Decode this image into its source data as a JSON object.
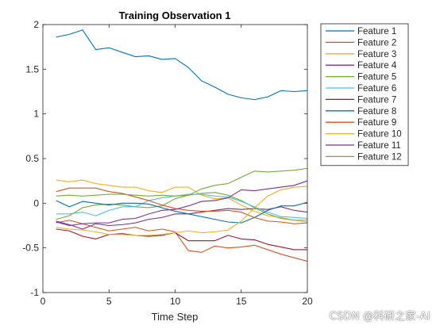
{
  "chart_data": {
    "type": "line",
    "title": "Training Observation 1",
    "xlabel": "Time Step",
    "ylabel": "",
    "xlim": [
      0,
      20
    ],
    "ylim": [
      -1,
      2
    ],
    "xticks": [
      0,
      5,
      10,
      15,
      20
    ],
    "yticks": [
      -1,
      -0.5,
      0,
      0.5,
      1,
      1.5,
      2
    ],
    "x": [
      1,
      2,
      3,
      4,
      5,
      6,
      7,
      8,
      9,
      10,
      11,
      12,
      13,
      14,
      15,
      16,
      17,
      18,
      19,
      20
    ],
    "grid": false,
    "legend_position": "outside-top-right",
    "series": [
      {
        "name": "Feature 1",
        "color": "#0072BD",
        "values": [
          1.86,
          1.89,
          1.94,
          1.72,
          1.74,
          1.69,
          1.64,
          1.65,
          1.61,
          1.62,
          1.52,
          1.37,
          1.3,
          1.22,
          1.18,
          1.16,
          1.19,
          1.26,
          1.25,
          1.26
        ]
      },
      {
        "name": "Feature 2",
        "color": "#D95319",
        "values": [
          -0.22,
          -0.19,
          -0.23,
          -0.27,
          -0.31,
          -0.29,
          -0.27,
          -0.31,
          -0.29,
          -0.32,
          -0.53,
          -0.55,
          -0.48,
          -0.5,
          -0.49,
          -0.47,
          -0.52,
          -0.57,
          -0.61,
          -0.65
        ]
      },
      {
        "name": "Feature 3",
        "color": "#EDB120",
        "values": [
          0.26,
          0.24,
          0.26,
          0.22,
          0.2,
          0.18,
          0.18,
          0.14,
          0.12,
          0.18,
          0.18,
          0.09,
          0.05,
          0.06,
          -0.02,
          -0.09,
          -0.14,
          -0.16,
          -0.19,
          -0.21
        ]
      },
      {
        "name": "Feature 4",
        "color": "#7E2F8E",
        "values": [
          -0.2,
          -0.24,
          -0.29,
          -0.23,
          -0.25,
          -0.24,
          -0.22,
          -0.18,
          -0.16,
          -0.12,
          -0.12,
          -0.1,
          -0.08,
          -0.06,
          -0.07,
          -0.06,
          -0.07,
          -0.04,
          -0.08,
          -0.1
        ]
      },
      {
        "name": "Feature 5",
        "color": "#77AC30",
        "values": [
          -0.18,
          -0.14,
          -0.05,
          -0.02,
          -0.01,
          -0.02,
          -0.04,
          -0.05,
          -0.03,
          0.05,
          0.09,
          0.11,
          0.12,
          0.09,
          0.03,
          -0.05,
          -0.12,
          -0.17,
          -0.19,
          -0.19
        ]
      },
      {
        "name": "Feature 6",
        "color": "#4DBEEE",
        "values": [
          -0.12,
          -0.12,
          -0.1,
          -0.14,
          -0.08,
          -0.04,
          -0.04,
          0.03,
          0.06,
          0.08,
          0.1,
          0.1,
          0.08,
          0.07,
          0.02,
          -0.04,
          -0.1,
          -0.15,
          -0.16,
          -0.17
        ]
      },
      {
        "name": "Feature 7",
        "color": "#A2142F",
        "values": [
          -0.29,
          -0.31,
          -0.37,
          -0.4,
          -0.35,
          -0.34,
          -0.36,
          -0.37,
          -0.36,
          -0.33,
          -0.42,
          -0.42,
          -0.42,
          -0.36,
          -0.4,
          -0.41,
          -0.46,
          -0.49,
          -0.52,
          -0.52
        ]
      },
      {
        "name": "Feature 8",
        "color": "#0072BD",
        "values": [
          0.03,
          -0.04,
          0.02,
          0.0,
          -0.02,
          0.0,
          0.0,
          -0.01,
          -0.05,
          -0.09,
          -0.12,
          -0.15,
          -0.18,
          -0.21,
          -0.22,
          -0.16,
          -0.08,
          -0.03,
          -0.03,
          0.01
        ]
      },
      {
        "name": "Feature 9",
        "color": "#D95319",
        "values": [
          0.13,
          0.17,
          0.17,
          0.17,
          0.13,
          0.11,
          0.07,
          0.03,
          -0.02,
          -0.06,
          -0.08,
          -0.09,
          -0.09,
          -0.08,
          -0.1,
          -0.16,
          -0.2,
          -0.21,
          -0.23,
          -0.22
        ]
      },
      {
        "name": "Feature 10",
        "color": "#EDB120",
        "values": [
          -0.27,
          -0.29,
          -0.3,
          -0.32,
          -0.35,
          -0.35,
          -0.36,
          -0.36,
          -0.35,
          -0.33,
          -0.31,
          -0.33,
          -0.32,
          -0.3,
          -0.2,
          -0.05,
          0.08,
          0.15,
          0.18,
          0.19
        ]
      },
      {
        "name": "Feature 11",
        "color": "#7E2F8E",
        "values": [
          -0.21,
          -0.25,
          -0.23,
          -0.22,
          -0.22,
          -0.18,
          -0.17,
          -0.12,
          -0.08,
          -0.07,
          -0.03,
          0.02,
          0.03,
          0.06,
          0.15,
          0.14,
          0.16,
          0.18,
          0.2,
          0.25
        ]
      },
      {
        "name": "Feature 12",
        "color": "#77AC30",
        "values": [
          0.08,
          0.09,
          0.08,
          0.09,
          0.1,
          0.1,
          0.09,
          0.08,
          0.09,
          0.08,
          0.09,
          0.16,
          0.2,
          0.22,
          0.29,
          0.36,
          0.35,
          0.36,
          0.37,
          0.39
        ]
      }
    ]
  },
  "watermark": "CSDN @科研之家-AI"
}
